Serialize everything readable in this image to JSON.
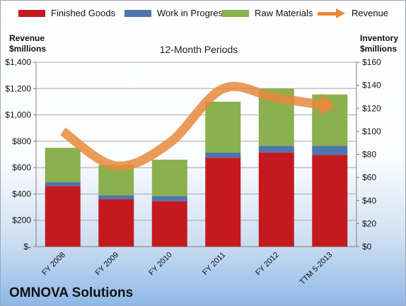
{
  "legend": {
    "finished_goods": "Finished Goods",
    "wip": "Work in Progress",
    "raw_materials": "Raw Materials",
    "revenue": "Revenue"
  },
  "left_axis_title": [
    "Revenue",
    "$millions"
  ],
  "right_axis_title": [
    "Inventory",
    "$millions"
  ],
  "company": "OMNOVA Solutions",
  "colors": {
    "finished_goods": "#c41a1f",
    "wip": "#4f74ae",
    "raw_materials": "#8bb04e",
    "revenue": "#e8893c"
  },
  "chart_data": {
    "type": "bar",
    "title": "12-Month Periods",
    "stacked": true,
    "categories": [
      "FY 2008",
      "FY 2009",
      "FY 2010",
      "FY 2011",
      "FY 2012",
      "TTM 5-2013"
    ],
    "series": [
      {
        "name": "Finished Goods",
        "axis": "left",
        "values": [
          460,
          360,
          345,
          675,
          715,
          695
        ]
      },
      {
        "name": "Work in Progress",
        "axis": "left",
        "values": [
          30,
          30,
          40,
          40,
          50,
          70
        ]
      },
      {
        "name": "Raw Materials",
        "axis": "left",
        "values": [
          260,
          230,
          275,
          385,
          435,
          390
        ]
      },
      {
        "name": "Revenue",
        "axis": "right",
        "type": "line",
        "values": [
          100,
          70,
          90,
          137,
          129,
          122
        ]
      }
    ],
    "left_axis": {
      "min": 0,
      "max": 1400,
      "step": 200,
      "tick_labels": [
        "$-",
        "$200",
        "$400",
        "$600",
        "$800",
        "$1,000",
        "$1,200",
        "$1,400"
      ]
    },
    "right_axis": {
      "min": 0,
      "max": 160,
      "step": 20,
      "tick_labels": [
        "$0",
        "$20",
        "$40",
        "$60",
        "$80",
        "$100",
        "$120",
        "$140",
        "$160"
      ]
    },
    "grid": true,
    "legend_position": "top"
  }
}
